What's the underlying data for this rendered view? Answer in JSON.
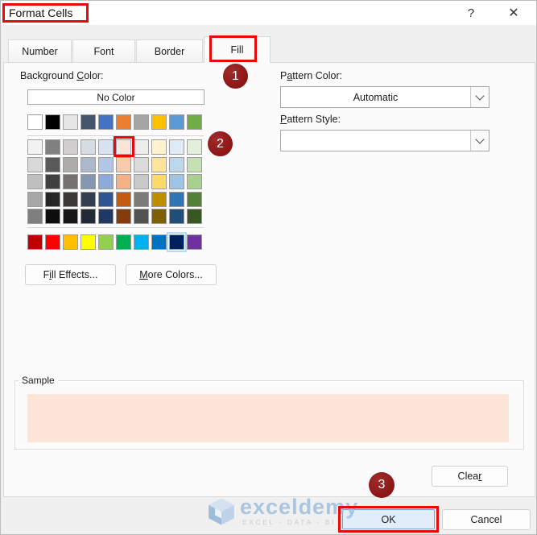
{
  "window": {
    "title": "Format Cells",
    "help": "?",
    "close": "✕"
  },
  "tabs": [
    "Number",
    "Font",
    "Border",
    "Fill"
  ],
  "active_tab": "Fill",
  "fill": {
    "background_color_label": {
      "pre": "Background ",
      "mn": "C",
      "post": "olor:"
    },
    "no_color_button": "No Color",
    "pattern_color_label": {
      "pre": "P",
      "mn": "a",
      "post": "ttern Color:"
    },
    "pattern_color_value": "Automatic",
    "pattern_style_label": {
      "pre": "",
      "mn": "P",
      "post": "attern Style:"
    },
    "pattern_style_value": "",
    "fill_effects_button": {
      "pre": "F",
      "mn": "i",
      "post": "ll Effects..."
    },
    "more_colors_button": {
      "pre": "",
      "mn": "M",
      "post": "ore Colors..."
    },
    "sample_label": "Sample",
    "sample_color": "#FCE4D6"
  },
  "palette": {
    "theme_row": [
      "#FFFFFF",
      "#000000",
      "#E7E6E6",
      "#44546A",
      "#4472C4",
      "#ED7D31",
      "#A5A5A5",
      "#FFC000",
      "#5B9BD5",
      "#70AD47"
    ],
    "variant_rows": [
      [
        "#F2F2F2",
        "#808080",
        "#D0CECE",
        "#D6DCE4",
        "#D9E2F3",
        "#FCE4D6",
        "#EDEDED",
        "#FFF2CC",
        "#DEEBF7",
        "#E2EFDA"
      ],
      [
        "#D9D9D9",
        "#595959",
        "#AEABAB",
        "#ACB9CA",
        "#B4C6E7",
        "#F8CBAD",
        "#DBDBDB",
        "#FFE599",
        "#BDD7EE",
        "#C6E0B4"
      ],
      [
        "#BFBFBF",
        "#404040",
        "#757171",
        "#8496B0",
        "#8EAADB",
        "#F4B183",
        "#C9C9C9",
        "#FFD966",
        "#9DC3E6",
        "#A9D08E"
      ],
      [
        "#A6A6A6",
        "#262626",
        "#3B3838",
        "#333F50",
        "#2F5496",
        "#C55A11",
        "#7B7B7B",
        "#BF8F00",
        "#2E75B6",
        "#538135"
      ],
      [
        "#7F7F7F",
        "#0D0D0D",
        "#171616",
        "#222A35",
        "#1F3864",
        "#843C0C",
        "#525252",
        "#7F6000",
        "#1F4E79",
        "#385723"
      ]
    ],
    "standard_row": [
      "#C00000",
      "#FF0000",
      "#FFC000",
      "#FFFF00",
      "#92D050",
      "#00B050",
      "#00B0F0",
      "#0070C0",
      "#002060",
      "#7030A0"
    ],
    "selected_variant": {
      "row": 0,
      "col": 5,
      "color": "#FCE4D6"
    },
    "focused_standard_col": 8
  },
  "buttons": {
    "ok": "OK",
    "cancel": "Cancel",
    "clear": {
      "pre": "Clea",
      "mn": "r",
      "post": ""
    }
  },
  "annotations": {
    "badges": [
      "1",
      "2",
      "3"
    ],
    "box_color": "#E70A0A",
    "badge_color": "#8C1616"
  },
  "watermark": {
    "brand": "exceldemy",
    "tagline": "EXCEL - DATA - BI"
  }
}
